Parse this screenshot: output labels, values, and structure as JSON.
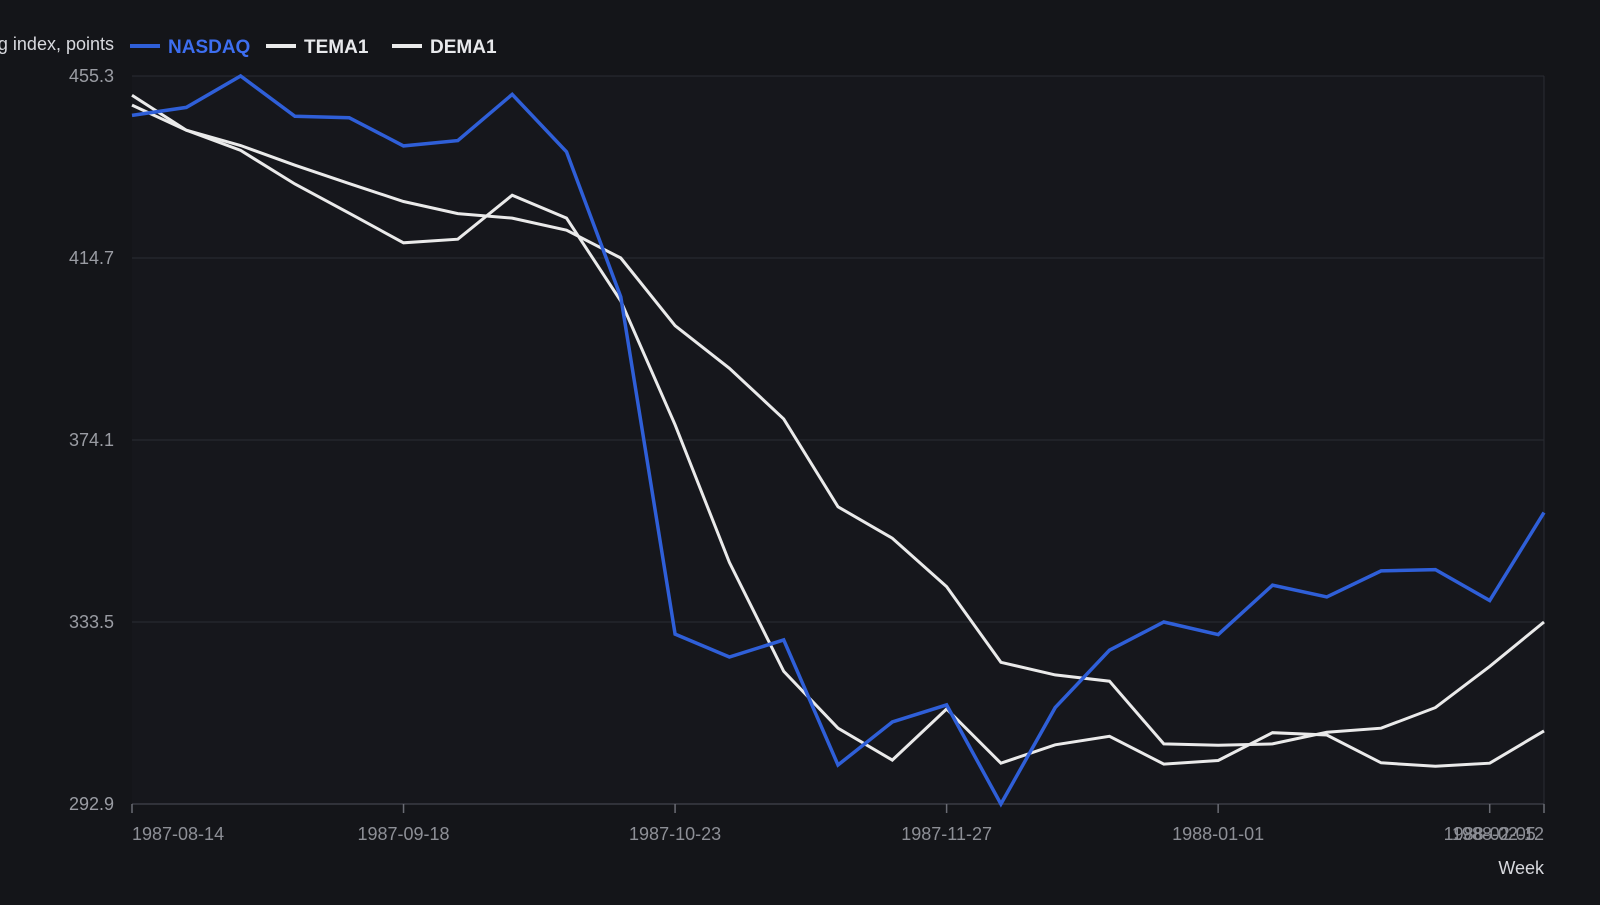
{
  "chart_data": {
    "type": "line",
    "ylabel": "Closing index, points",
    "xlabel": "Week",
    "ylim": [
      292.9,
      455.3
    ],
    "yticks": [
      292.9,
      333.5,
      374.1,
      414.7,
      455.3
    ],
    "ytick_labels": [
      "292.9",
      "333.5",
      "374.1",
      "414.7",
      "455.3"
    ],
    "xtick_labels": [
      "1987-08-14",
      "1987-09-18",
      "1987-10-23",
      "1987-11-27",
      "1988-01-01",
      "1988-02-05",
      "1988-02-12"
    ],
    "xtick_positions": [
      0,
      5,
      10,
      15,
      20,
      25,
      26
    ],
    "x": [
      "1987-08-14",
      "1987-08-21",
      "1987-08-28",
      "1987-09-04",
      "1987-09-11",
      "1987-09-18",
      "1987-09-25",
      "1987-10-02",
      "1987-10-09",
      "1987-10-16",
      "1987-10-23",
      "1987-10-30",
      "1987-11-06",
      "1987-11-13",
      "1987-11-20",
      "1987-11-27",
      "1987-12-04",
      "1987-12-11",
      "1987-12-18",
      "1987-12-25",
      "1988-01-01",
      "1988-01-08",
      "1988-01-15",
      "1988-01-22",
      "1988-01-29",
      "1988-02-05",
      "1988-02-12"
    ],
    "grid": true,
    "legend_position": "top-left",
    "series": [
      {
        "name": "NASDAQ",
        "color": "#2f5fd8",
        "values": [
          446.5,
          448.3,
          455.3,
          446.3,
          446.0,
          439.7,
          440.9,
          451.2,
          438.4,
          406.0,
          330.8,
          325.7,
          329.5,
          301.6,
          311.2,
          315.0,
          292.9,
          314.4,
          327.2,
          333.5,
          330.7,
          341.7,
          339.1,
          344.9,
          345.2,
          338.3,
          357.9
        ]
      },
      {
        "name": "TEMA1",
        "color": "#eaeaea",
        "values": [
          451.0,
          443.2,
          438.7,
          431.2,
          424.7,
          418.1,
          418.9,
          428.7,
          423.6,
          405.1,
          377.5,
          346.8,
          322.5,
          309.8,
          302.7,
          314.1,
          302.0,
          306.1,
          308.0,
          301.8,
          302.6,
          308.8,
          308.3,
          302.1,
          301.3,
          302.0,
          309.2
        ]
      },
      {
        "name": "DEMA1",
        "color": "#eaeaea",
        "values": [
          448.8,
          443.2,
          439.8,
          435.4,
          431.3,
          427.3,
          424.6,
          423.6,
          420.9,
          414.7,
          399.6,
          390.1,
          378.8,
          359.2,
          352.2,
          341.4,
          324.5,
          321.7,
          320.3,
          306.3,
          306.0,
          306.3,
          308.9,
          309.8,
          314.4,
          323.6,
          333.5
        ]
      }
    ]
  }
}
